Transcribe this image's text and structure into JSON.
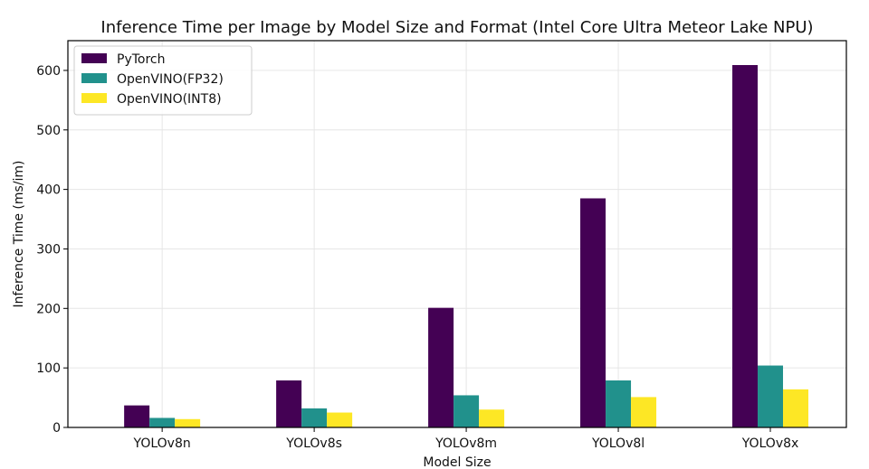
{
  "chart_data": {
    "type": "bar",
    "title": "Inference Time per Image by Model Size and Format (Intel Core Ultra Meteor Lake NPU)",
    "xlabel": "Model Size",
    "ylabel": "Inference Time (ms/im)",
    "categories": [
      "YOLOv8n",
      "YOLOv8s",
      "YOLOv8m",
      "YOLOv8l",
      "YOLOv8x"
    ],
    "series": [
      {
        "name": "PyTorch",
        "color": "#440154",
        "values": [
          37,
          79,
          201,
          385,
          609
        ]
      },
      {
        "name": "OpenVINO(FP32)",
        "color": "#21918c",
        "values": [
          16,
          32,
          54,
          79,
          104
        ]
      },
      {
        "name": "OpenVINO(INT8)",
        "color": "#fde725",
        "values": [
          14,
          25,
          30,
          51,
          64
        ]
      }
    ],
    "ylim": [
      0,
      650
    ],
    "yticks": [
      0,
      100,
      200,
      300,
      400,
      500,
      600
    ],
    "grid": true,
    "legend_position": "top-left"
  }
}
